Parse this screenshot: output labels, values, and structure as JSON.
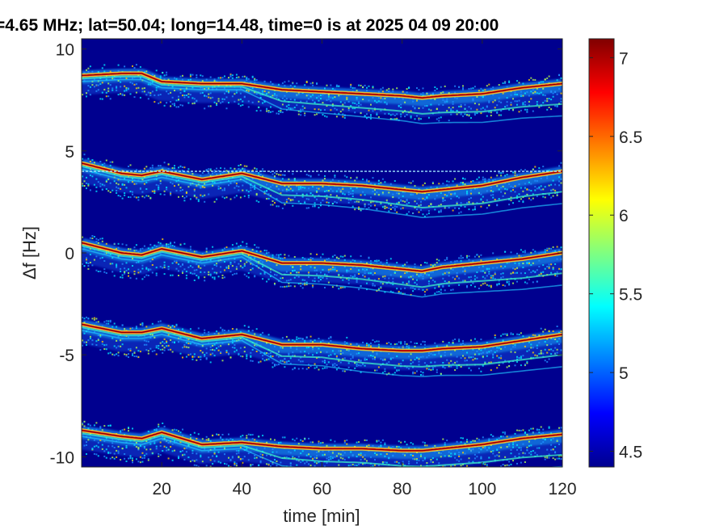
{
  "chart_data": {
    "type": "heatmap",
    "title": "=4.65 MHz;  lat=50.04; long=14.48, time=0 is at 2025 04 09 20:00",
    "xlabel": "time [min]",
    "ylabel": "Δf [Hz]",
    "xlim": [
      0,
      120
    ],
    "ylim": [
      -10.5,
      10.5
    ],
    "xticks": [
      20,
      40,
      60,
      80,
      100,
      120
    ],
    "xtick_labels": [
      "20",
      "40",
      "60",
      "80",
      "100",
      "120"
    ],
    "yticks": [
      10,
      5,
      0,
      -5,
      -10
    ],
    "ytick_labels": [
      "10",
      "5",
      "0",
      "-5",
      "-10"
    ],
    "colorbar": {
      "min": 4.4,
      "max": 7.12,
      "ticks": [
        7,
        6.5,
        6,
        5.5,
        5,
        4.5
      ],
      "tick_labels": [
        "7",
        "6.5",
        "6",
        "5.5",
        "5",
        "4.5"
      ],
      "colormap": "jet"
    },
    "background_color": "#00008f",
    "traces": [
      {
        "x": [
          0,
          10,
          15,
          20,
          30,
          40,
          50,
          60,
          70,
          80,
          85,
          90,
          100,
          110,
          120
        ],
        "y": [
          8.7,
          8.8,
          8.8,
          8.4,
          8.3,
          8.3,
          8.0,
          7.9,
          7.8,
          7.7,
          7.6,
          7.7,
          7.8,
          8.1,
          8.3
        ]
      },
      {
        "x": [
          0,
          10,
          15,
          20,
          30,
          40,
          50,
          60,
          70,
          80,
          85,
          90,
          100,
          110,
          120
        ],
        "y": [
          4.4,
          3.9,
          3.8,
          4.0,
          3.6,
          3.9,
          3.4,
          3.4,
          3.3,
          3.1,
          3.0,
          3.1,
          3.3,
          3.7,
          4.0
        ]
      },
      {
        "x": [
          0,
          10,
          15,
          20,
          30,
          40,
          50,
          60,
          70,
          80,
          85,
          90,
          100,
          110,
          120
        ],
        "y": [
          0.5,
          0.0,
          -0.1,
          0.2,
          -0.2,
          0.1,
          -0.5,
          -0.5,
          -0.6,
          -0.8,
          -0.9,
          -0.7,
          -0.5,
          -0.3,
          0.0
        ]
      },
      {
        "x": [
          0,
          10,
          15,
          20,
          30,
          40,
          50,
          60,
          70,
          80,
          85,
          90,
          100,
          110,
          120
        ],
        "y": [
          -3.5,
          -3.9,
          -3.9,
          -3.7,
          -4.2,
          -4.0,
          -4.5,
          -4.5,
          -4.7,
          -4.8,
          -4.8,
          -4.7,
          -4.6,
          -4.3,
          -4.0
        ]
      },
      {
        "x": [
          0,
          10,
          15,
          20,
          30,
          40,
          50,
          60,
          70,
          80,
          85,
          90,
          100,
          110,
          120
        ],
        "y": [
          -8.7,
          -9.0,
          -9.1,
          -8.8,
          -9.4,
          -9.3,
          -9.5,
          -9.6,
          -9.6,
          -9.7,
          -9.7,
          -9.6,
          -9.4,
          -9.1,
          -8.9
        ]
      }
    ],
    "horizontal_line": {
      "y": 4.0
    }
  }
}
